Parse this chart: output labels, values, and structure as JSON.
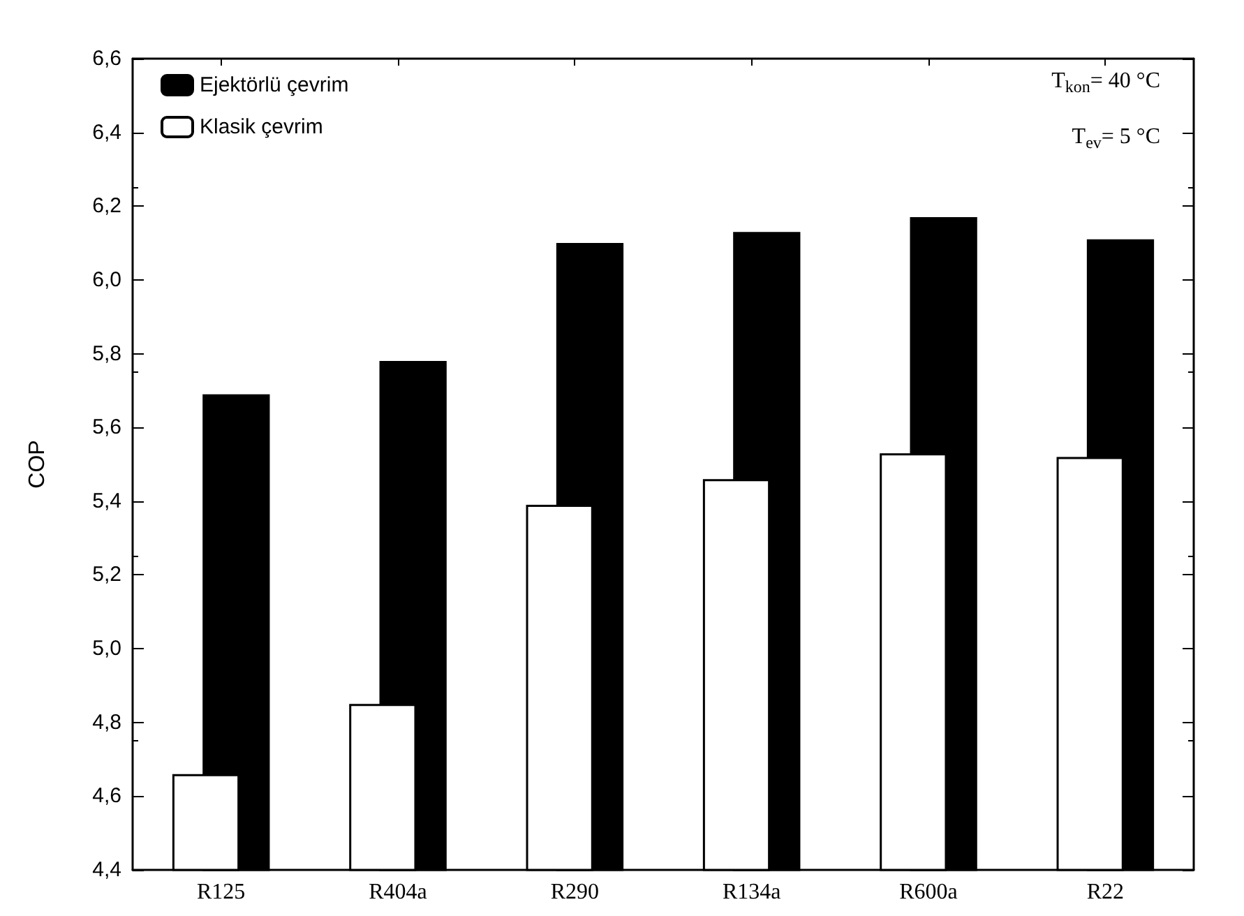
{
  "chart_data": {
    "type": "bar",
    "ylabel": "COP",
    "categories": [
      "R125",
      "R404a",
      "R290",
      "R134a",
      "R600a",
      "R22"
    ],
    "series": [
      {
        "name": "Ejektörlü çevrim",
        "color": "#000000",
        "values": [
          5.69,
          5.78,
          6.1,
          6.13,
          6.17,
          6.11
        ]
      },
      {
        "name": "Klasik çevrim",
        "color": "#ffffff",
        "values": [
          4.66,
          4.85,
          5.39,
          5.46,
          5.53,
          5.52
        ]
      }
    ],
    "ylim": [
      4.4,
      6.6
    ],
    "yticks": [
      {
        "value": 4.4,
        "label": "4,4"
      },
      {
        "value": 4.6,
        "label": "4,6"
      },
      {
        "value": 4.8,
        "label": "4,8"
      },
      {
        "value": 5.0,
        "label": "5,0"
      },
      {
        "value": 5.2,
        "label": "5,2"
      },
      {
        "value": 5.4,
        "label": "5,4"
      },
      {
        "value": 5.6,
        "label": "5,6"
      },
      {
        "value": 5.8,
        "label": "5,8"
      },
      {
        "value": 6.0,
        "label": "6,0"
      },
      {
        "value": 6.2,
        "label": "6,2"
      },
      {
        "value": 6.4,
        "label": "6,4"
      },
      {
        "value": 6.6,
        "label": "6,6"
      }
    ],
    "annotations": [
      "T$_{kon}$= 40 °C",
      "T$_{ev}$= 5 °C"
    ],
    "legend": "top left",
    "grid": false
  }
}
